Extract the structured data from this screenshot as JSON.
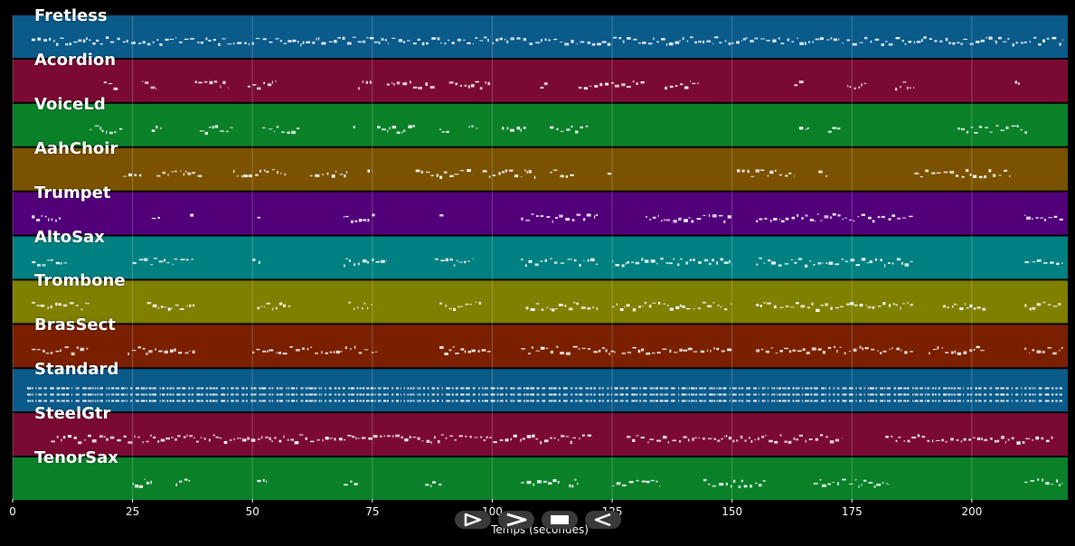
{
  "chart_data": {
    "type": "piano-roll",
    "xlabel": "Temps (secondes)",
    "xlim": [
      0,
      220
    ],
    "xticks": [
      0,
      25,
      50,
      75,
      100,
      125,
      150,
      175,
      200
    ],
    "tick_labels": [
      "0",
      "25",
      "50",
      "75",
      "100",
      "125",
      "150",
      "175",
      "200"
    ],
    "grid": true,
    "tracks": [
      {
        "name": "Fretless",
        "color": "#0a5a8a",
        "segments": [
          [
            4,
            219
          ]
        ]
      },
      {
        "name": "Acordion",
        "color": "#7a0a34",
        "segments": [
          [
            19,
            22
          ],
          [
            27,
            30
          ],
          [
            38,
            45
          ],
          [
            49,
            55
          ],
          [
            72,
            75
          ],
          [
            78,
            88
          ],
          [
            91,
            100
          ],
          [
            110,
            112
          ],
          [
            118,
            132
          ],
          [
            136,
            143
          ],
          [
            163,
            165
          ],
          [
            174,
            178
          ],
          [
            184,
            188
          ],
          [
            209,
            210
          ]
        ]
      },
      {
        "name": "VoiceLd",
        "color": "#0a8028",
        "segments": [
          [
            16,
            23
          ],
          [
            29,
            31
          ],
          [
            39,
            46
          ],
          [
            52,
            60
          ],
          [
            71,
            72
          ],
          [
            76,
            84
          ],
          [
            89,
            91
          ],
          [
            95,
            97
          ],
          [
            102,
            107
          ],
          [
            112,
            120
          ],
          [
            164,
            166
          ],
          [
            170,
            173
          ],
          [
            197,
            212
          ]
        ]
      },
      {
        "name": "AahChoir",
        "color": "#7a5200",
        "segments": [
          [
            23,
            27
          ],
          [
            30,
            40
          ],
          [
            46,
            57
          ],
          [
            62,
            70
          ],
          [
            74,
            75
          ],
          [
            84,
            96
          ],
          [
            98,
            109
          ],
          [
            112,
            117
          ],
          [
            124,
            125
          ],
          [
            151,
            163
          ],
          [
            168,
            170
          ],
          [
            188,
            208
          ]
        ]
      },
      {
        "name": "Trumpet",
        "color": "#52007a",
        "segments": [
          [
            4,
            10
          ],
          [
            29,
            31
          ],
          [
            37,
            38
          ],
          [
            51,
            52
          ],
          [
            69,
            76
          ],
          [
            89,
            90
          ],
          [
            106,
            122
          ],
          [
            132,
            150
          ],
          [
            155,
            188
          ],
          [
            211,
            219
          ]
        ]
      },
      {
        "name": "AltoSax",
        "color": "#008080",
        "segments": [
          [
            4,
            12
          ],
          [
            25,
            38
          ],
          [
            50,
            52
          ],
          [
            69,
            78
          ],
          [
            88,
            96
          ],
          [
            106,
            122
          ],
          [
            125,
            150
          ],
          [
            155,
            188
          ],
          [
            211,
            219
          ]
        ]
      },
      {
        "name": "Trombone",
        "color": "#7f7f00",
        "segments": [
          [
            4,
            16
          ],
          [
            28,
            38
          ],
          [
            51,
            58
          ],
          [
            70,
            75
          ],
          [
            89,
            98
          ],
          [
            107,
            122
          ],
          [
            125,
            150
          ],
          [
            155,
            188
          ],
          [
            194,
            203
          ],
          [
            211,
            219
          ]
        ]
      },
      {
        "name": "BrasSect",
        "color": "#7a2000",
        "segments": [
          [
            4,
            16
          ],
          [
            24,
            38
          ],
          [
            50,
            76
          ],
          [
            89,
            100
          ],
          [
            106,
            126
          ],
          [
            127,
            150
          ],
          [
            155,
            188
          ],
          [
            191,
            203
          ],
          [
            211,
            219
          ]
        ]
      },
      {
        "name": "Standard",
        "color": "#0a5a8a",
        "segments": [
          [
            3,
            219
          ]
        ]
      },
      {
        "name": "SteelGtr",
        "color": "#7a0a34",
        "segments": [
          [
            8,
            121
          ],
          [
            128,
            173
          ],
          [
            182,
            217
          ]
        ]
      },
      {
        "name": "TenorSax",
        "color": "#0a8028",
        "segments": [
          [
            25,
            29
          ],
          [
            34,
            37
          ],
          [
            51,
            53
          ],
          [
            69,
            72
          ],
          [
            86,
            90
          ],
          [
            106,
            114
          ],
          [
            116,
            118
          ],
          [
            125,
            135
          ],
          [
            144,
            157
          ],
          [
            167,
            183
          ],
          [
            211,
            219
          ]
        ]
      }
    ]
  },
  "controls": {
    "play_icon": "play-icon",
    "fast_forward_icon": "fast-forward-icon",
    "stop_icon": "stop-icon",
    "rewind_icon": "rewind-icon"
  },
  "colors": {
    "background": "#000000",
    "note": "#ffffff",
    "grid": "#ffffff"
  }
}
